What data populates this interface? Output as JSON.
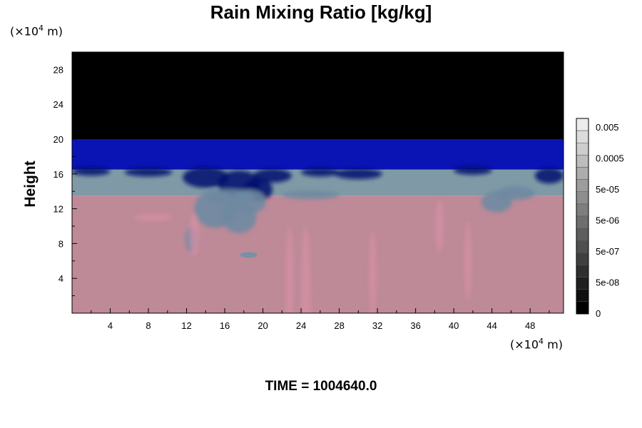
{
  "title": "Rain Mixing Ratio [kg/kg]",
  "y_unit": {
    "prefix": "(×10",
    "exp": "4",
    "suffix": " m)"
  },
  "x_unit": {
    "prefix": "(×10",
    "exp": "4",
    "suffix": " m)"
  },
  "time_label": "TIME = 1004640.0",
  "chart_data": {
    "type": "heatmap",
    "title": "Rain Mixing Ratio [kg/kg]",
    "ylabel": "Height",
    "xlabel": "",
    "xlim": [
      0,
      51.5
    ],
    "ylim": [
      0,
      30
    ],
    "x_ticks": [
      4,
      8,
      12,
      16,
      20,
      24,
      28,
      32,
      36,
      40,
      44,
      48
    ],
    "y_ticks": [
      4,
      8,
      12,
      16,
      20,
      24,
      28
    ],
    "layers": [
      {
        "from": 0,
        "to": 13.5,
        "color": "#be8a98"
      },
      {
        "from": 13.5,
        "to": 16.5,
        "color": "#7f9aa6"
      },
      {
        "from": 16.5,
        "to": 20,
        "color": "#0a14b4"
      },
      {
        "from": 20,
        "to": 30,
        "color": "#000000"
      }
    ],
    "colorbar": {
      "ticks": [
        "0.005",
        "0.0005",
        "5e-05",
        "5e-06",
        "5e-07",
        "5e-08",
        "0"
      ],
      "levels": 16,
      "color_top": "#ececec",
      "color_bottom": "#000000"
    }
  }
}
